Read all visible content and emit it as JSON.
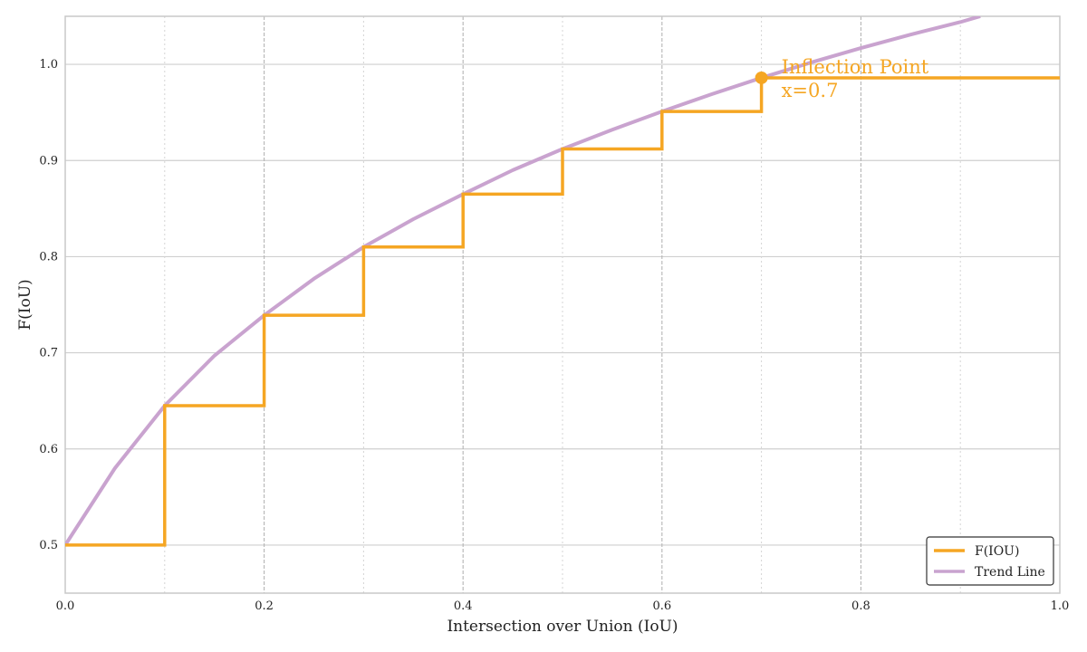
{
  "chart_data": {
    "type": "line",
    "xlabel": "Intersection over Union (IoU)",
    "ylabel": "F(IoU)",
    "xlim": [
      0.0,
      1.0
    ],
    "ylim": [
      0.45,
      1.05
    ],
    "x_ticks": [
      0.0,
      0.2,
      0.4,
      0.6,
      0.8,
      1.0
    ],
    "x_tick_labels": [
      "0.0",
      "0.2",
      "0.4",
      "0.6",
      "0.8",
      "1.0"
    ],
    "x_minor_ticks": [
      0.1,
      0.3,
      0.5,
      0.7,
      0.9
    ],
    "y_ticks": [
      0.5,
      0.6,
      0.7,
      0.8,
      0.9,
      1.0
    ],
    "y_tick_labels": [
      "0.5",
      "0.6",
      "0.7",
      "0.8",
      "0.9",
      "1.0"
    ],
    "grid": true,
    "legend_position": "lower-right",
    "series": [
      {
        "name": "F(IOU)",
        "style": "step",
        "color": "#f5a623",
        "x": [
          0.0,
          0.1,
          0.2,
          0.3,
          0.4,
          0.5,
          0.6,
          0.7,
          1.0
        ],
        "y": [
          0.5,
          0.645,
          0.739,
          0.81,
          0.865,
          0.912,
          0.951,
          0.986,
          0.986
        ]
      },
      {
        "name": "Trend Line",
        "style": "curve",
        "color": "#c9a3cf",
        "x": [
          0.0,
          0.05,
          0.1,
          0.15,
          0.2,
          0.25,
          0.3,
          0.35,
          0.4,
          0.45,
          0.5,
          0.55,
          0.6,
          0.65,
          0.7,
          0.75,
          0.8,
          0.85,
          0.9,
          0.92
        ],
        "y": [
          0.5,
          0.58,
          0.645,
          0.697,
          0.739,
          0.777,
          0.81,
          0.839,
          0.865,
          0.89,
          0.912,
          0.932,
          0.951,
          0.969,
          0.986,
          1.002,
          1.017,
          1.031,
          1.044,
          1.05
        ]
      }
    ],
    "annotations": [
      {
        "text": "Inflection Point",
        "text2": "x=0.7",
        "x": 0.7,
        "y": 0.986,
        "color": "#f5a623"
      }
    ]
  }
}
